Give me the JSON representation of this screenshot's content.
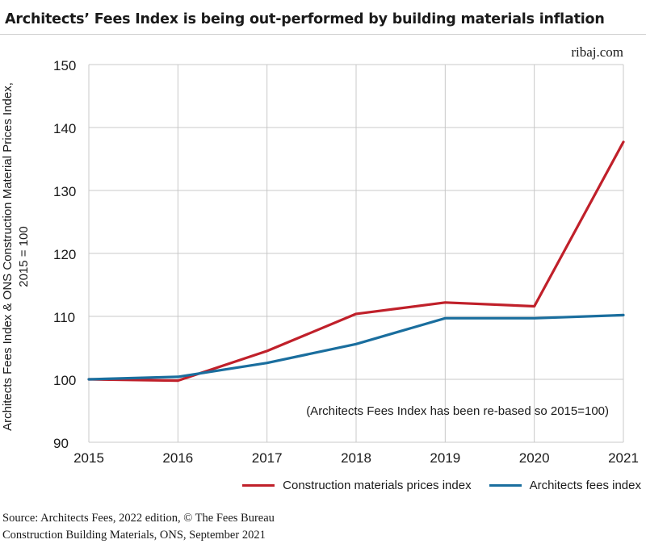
{
  "header": {
    "title": "Architects’ Fees Index is being out-performed by building materials inflation",
    "site": "ribaj.com"
  },
  "chart_data": {
    "type": "line",
    "title": "Architects’ Fees Index is being out-performed by building materials inflation",
    "ylabel_lines": [
      "Architects Fees Index & ONS Construction Material Prices Index,",
      "2015 = 100"
    ],
    "xlabel": "",
    "x": [
      2015,
      2016,
      2017,
      2018,
      2019,
      2020,
      2021
    ],
    "xticks": [
      "2015",
      "2016",
      "2017",
      "2018",
      "2019",
      "2020",
      "2021"
    ],
    "ylim": [
      90,
      150
    ],
    "yticks": [
      "90",
      "100",
      "110",
      "120",
      "130",
      "140",
      "150"
    ],
    "grid": true,
    "annotation": "(Architects Fees Index has been re-based so 2015=100)",
    "series": [
      {
        "name": "Construction materials prices index",
        "color": "#c0202a",
        "values": [
          100,
          99.8,
          104.5,
          110.4,
          112.2,
          111.6,
          137.7
        ]
      },
      {
        "name": "Architects fees index",
        "color": "#1a6e9e",
        "values": [
          100,
          100.4,
          102.6,
          105.6,
          109.7,
          109.7,
          110.2
        ]
      }
    ],
    "legend_position": "bottom-right"
  },
  "source": {
    "line1": "Source: Architects Fees, 2022 edition, © The Fees Bureau",
    "line2": "Construction Building Materials, ONS, September 2021"
  }
}
